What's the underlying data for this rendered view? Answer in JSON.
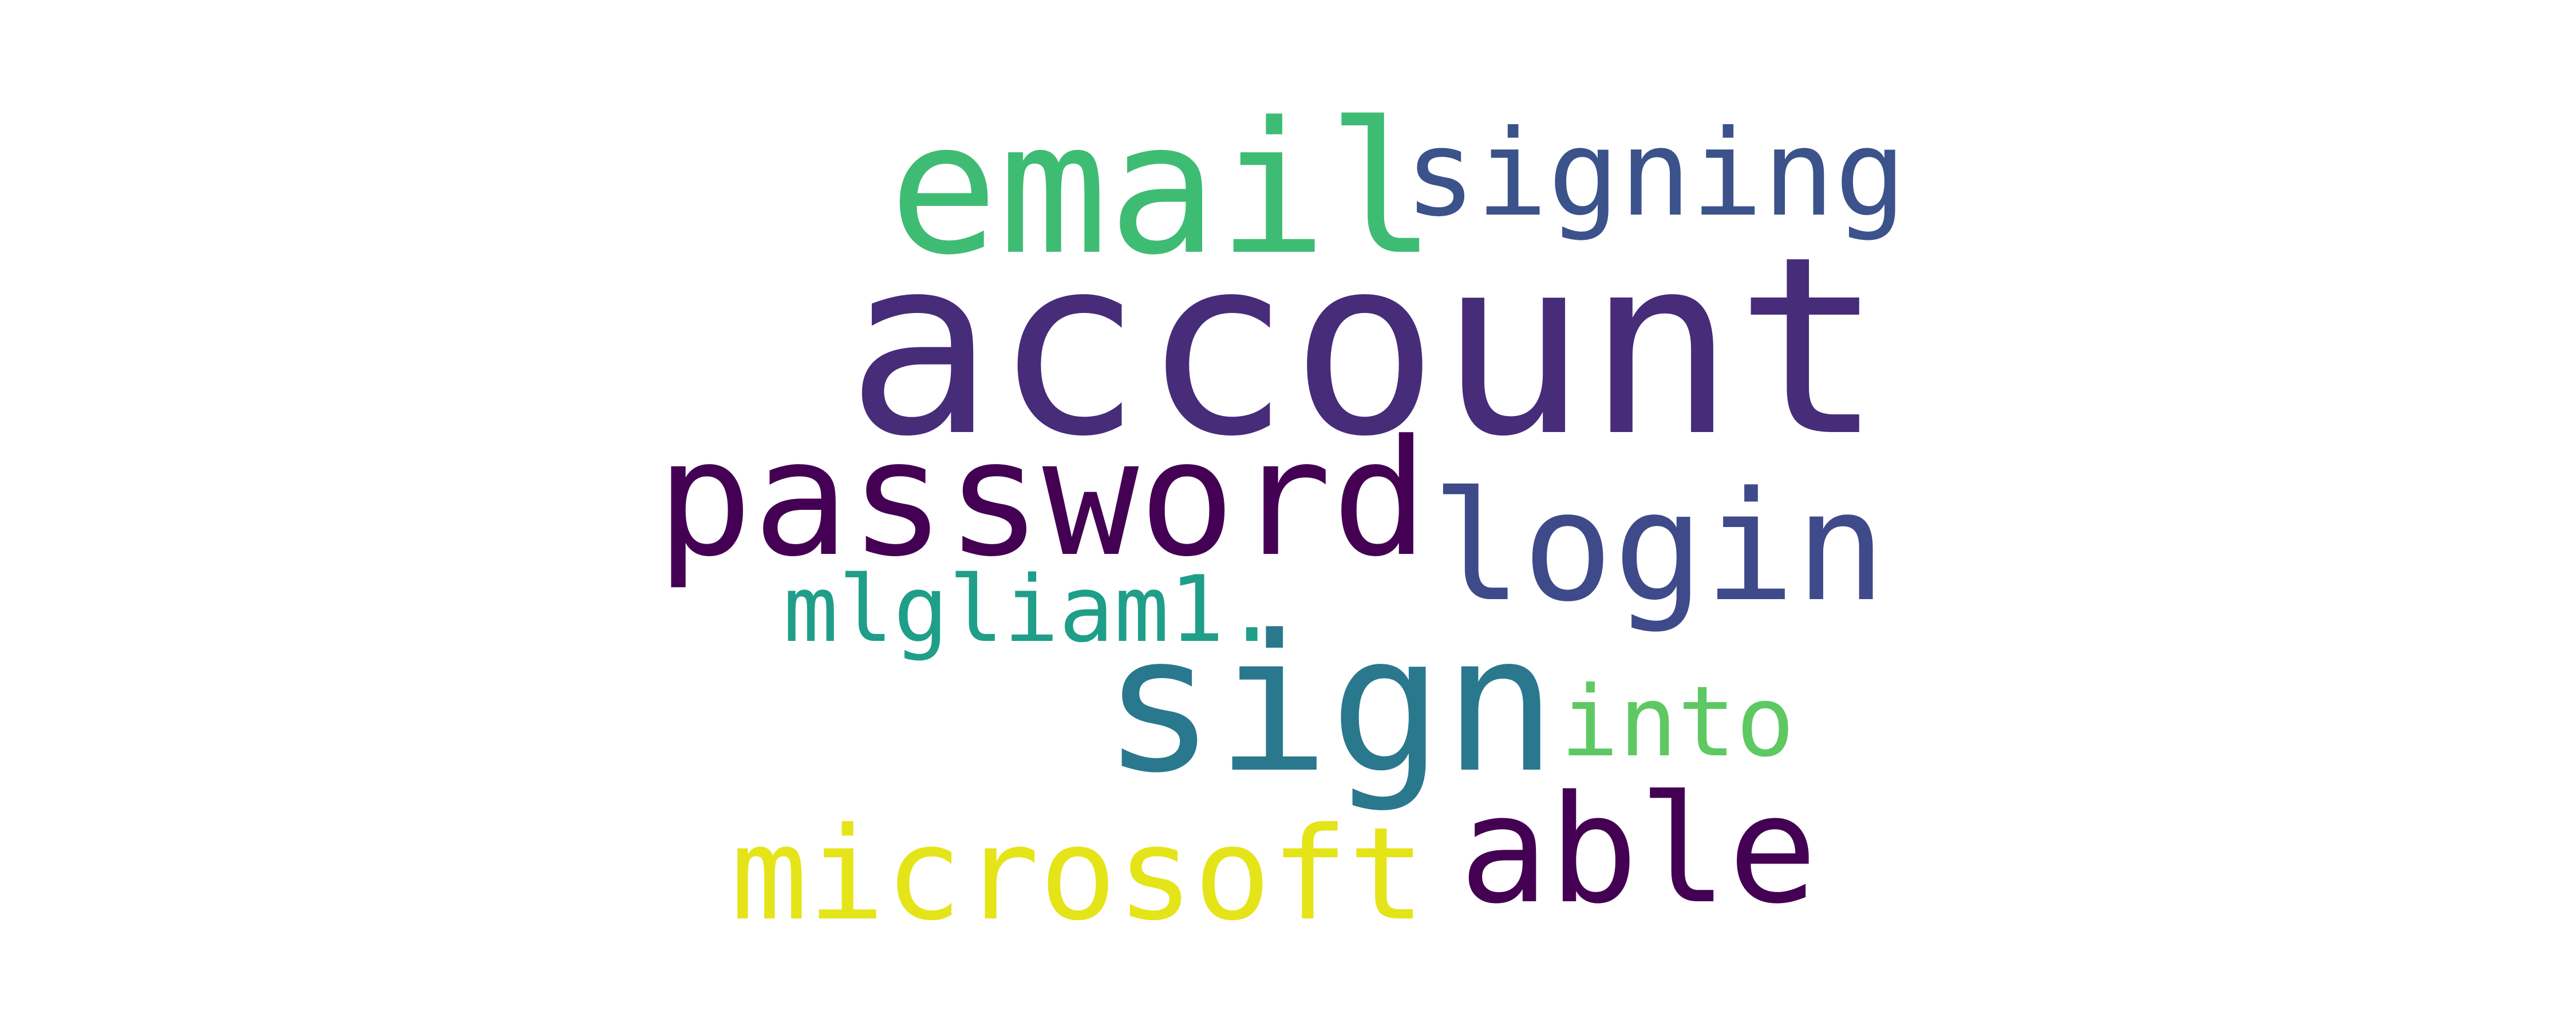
{
  "words": [
    {
      "text": "account",
      "color": "#472c7a"
    },
    {
      "text": "email",
      "color": "#3fbc73"
    },
    {
      "text": "signing",
      "color": "#3b528b"
    },
    {
      "text": "password",
      "color": "#440154"
    },
    {
      "text": "login",
      "color": "#3e4a89"
    },
    {
      "text": "mlgliam1.",
      "color": "#1f9e89"
    },
    {
      "text": "sign",
      "color": "#2a788e"
    },
    {
      "text": "into",
      "color": "#5ec962"
    },
    {
      "text": "microsoft",
      "color": "#e5e419"
    },
    {
      "text": "able",
      "color": "#440154"
    }
  ]
}
